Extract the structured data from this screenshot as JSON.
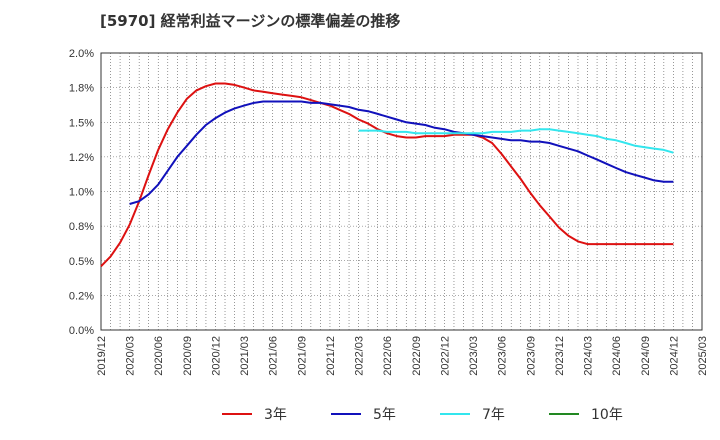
{
  "chart_data": {
    "type": "line",
    "title": "[5970]  経常利益マージンの標準偏差の推移",
    "xlabel": "",
    "ylabel": "",
    "x_ticks": [
      "2019/12",
      "2020/03",
      "2020/06",
      "2020/09",
      "2020/12",
      "2021/03",
      "2021/06",
      "2021/09",
      "2021/12",
      "2022/03",
      "2022/06",
      "2022/09",
      "2022/12",
      "2023/03",
      "2023/06",
      "2023/09",
      "2023/12",
      "2024/03",
      "2024/06",
      "2024/09",
      "2024/12",
      "2025/03"
    ],
    "y_ticks": [
      "0.0%",
      "0.2%",
      "0.5%",
      "0.8%",
      "1.0%",
      "1.2%",
      "1.5%",
      "1.8%",
      "2.0%"
    ],
    "ylim": [
      0,
      2.0
    ],
    "grid": true,
    "legend_position": "bottom",
    "series": [
      {
        "name": "3年",
        "color": "#dd1111",
        "x": [
          "2019/12",
          "2020/01",
          "2020/02",
          "2020/03",
          "2020/04",
          "2020/05",
          "2020/06",
          "2020/07",
          "2020/08",
          "2020/09",
          "2020/10",
          "2020/11",
          "2020/12",
          "2021/01",
          "2021/02",
          "2021/03",
          "2021/04",
          "2021/05",
          "2021/06",
          "2021/07",
          "2021/08",
          "2021/09",
          "2021/10",
          "2021/11",
          "2021/12",
          "2022/01",
          "2022/02",
          "2022/03",
          "2022/04",
          "2022/05",
          "2022/06",
          "2022/07",
          "2022/08",
          "2022/09",
          "2022/10",
          "2022/11",
          "2022/12",
          "2023/01",
          "2023/02",
          "2023/03",
          "2023/04",
          "2023/05",
          "2023/06",
          "2023/07",
          "2023/08",
          "2023/09",
          "2023/10",
          "2023/11",
          "2023/12",
          "2024/01",
          "2024/02",
          "2024/03",
          "2024/04",
          "2024/05",
          "2024/06",
          "2024/07",
          "2024/08",
          "2024/09",
          "2024/10",
          "2024/11",
          "2024/12"
        ],
        "values": [
          0.46,
          0.53,
          0.63,
          0.76,
          0.93,
          1.12,
          1.3,
          1.45,
          1.57,
          1.67,
          1.73,
          1.76,
          1.78,
          1.78,
          1.77,
          1.75,
          1.73,
          1.72,
          1.71,
          1.7,
          1.69,
          1.68,
          1.66,
          1.64,
          1.62,
          1.59,
          1.56,
          1.52,
          1.49,
          1.45,
          1.42,
          1.4,
          1.39,
          1.39,
          1.4,
          1.4,
          1.4,
          1.41,
          1.41,
          1.41,
          1.39,
          1.35,
          1.27,
          1.18,
          1.09,
          0.99,
          0.9,
          0.82,
          0.74,
          0.68,
          0.64,
          0.62,
          0.62,
          0.62,
          0.62,
          0.62,
          0.62,
          0.62,
          0.62,
          0.62,
          0.62
        ]
      },
      {
        "name": "5年",
        "color": "#1111bb",
        "x": [
          "2020/03",
          "2020/04",
          "2020/05",
          "2020/06",
          "2020/07",
          "2020/08",
          "2020/09",
          "2020/10",
          "2020/11",
          "2020/12",
          "2021/01",
          "2021/02",
          "2021/03",
          "2021/04",
          "2021/05",
          "2021/06",
          "2021/07",
          "2021/08",
          "2021/09",
          "2021/10",
          "2021/11",
          "2021/12",
          "2022/01",
          "2022/02",
          "2022/03",
          "2022/04",
          "2022/05",
          "2022/06",
          "2022/07",
          "2022/08",
          "2022/09",
          "2022/10",
          "2022/11",
          "2022/12",
          "2023/01",
          "2023/02",
          "2023/03",
          "2023/04",
          "2023/05",
          "2023/06",
          "2023/07",
          "2023/08",
          "2023/09",
          "2023/10",
          "2023/11",
          "2023/12",
          "2024/01",
          "2024/02",
          "2024/03",
          "2024/04",
          "2024/05",
          "2024/06",
          "2024/07",
          "2024/08",
          "2024/09",
          "2024/10",
          "2024/11",
          "2024/12"
        ],
        "values": [
          0.91,
          0.93,
          0.98,
          1.05,
          1.15,
          1.25,
          1.33,
          1.41,
          1.48,
          1.53,
          1.57,
          1.6,
          1.62,
          1.64,
          1.65,
          1.65,
          1.65,
          1.65,
          1.65,
          1.64,
          1.64,
          1.63,
          1.62,
          1.61,
          1.59,
          1.58,
          1.56,
          1.54,
          1.52,
          1.5,
          1.49,
          1.48,
          1.46,
          1.45,
          1.43,
          1.42,
          1.41,
          1.4,
          1.39,
          1.38,
          1.37,
          1.37,
          1.36,
          1.36,
          1.35,
          1.33,
          1.31,
          1.29,
          1.26,
          1.23,
          1.2,
          1.17,
          1.14,
          1.12,
          1.1,
          1.08,
          1.07,
          1.07
        ]
      },
      {
        "name": "7年",
        "color": "#33e6ee",
        "x": [
          "2022/03",
          "2022/04",
          "2022/05",
          "2022/06",
          "2022/07",
          "2022/08",
          "2022/09",
          "2022/10",
          "2022/11",
          "2022/12",
          "2023/01",
          "2023/02",
          "2023/03",
          "2023/04",
          "2023/05",
          "2023/06",
          "2023/07",
          "2023/08",
          "2023/09",
          "2023/10",
          "2023/11",
          "2023/12",
          "2024/01",
          "2024/02",
          "2024/03",
          "2024/04",
          "2024/05",
          "2024/06",
          "2024/07",
          "2024/08",
          "2024/09",
          "2024/10",
          "2024/11",
          "2024/12"
        ],
        "values": [
          1.44,
          1.44,
          1.44,
          1.43,
          1.43,
          1.43,
          1.42,
          1.42,
          1.42,
          1.42,
          1.42,
          1.42,
          1.42,
          1.42,
          1.43,
          1.43,
          1.43,
          1.44,
          1.44,
          1.45,
          1.45,
          1.44,
          1.43,
          1.42,
          1.41,
          1.4,
          1.38,
          1.37,
          1.35,
          1.33,
          1.32,
          1.31,
          1.3,
          1.28
        ]
      },
      {
        "name": "10年",
        "color": "#228822",
        "x": [],
        "values": []
      }
    ]
  }
}
